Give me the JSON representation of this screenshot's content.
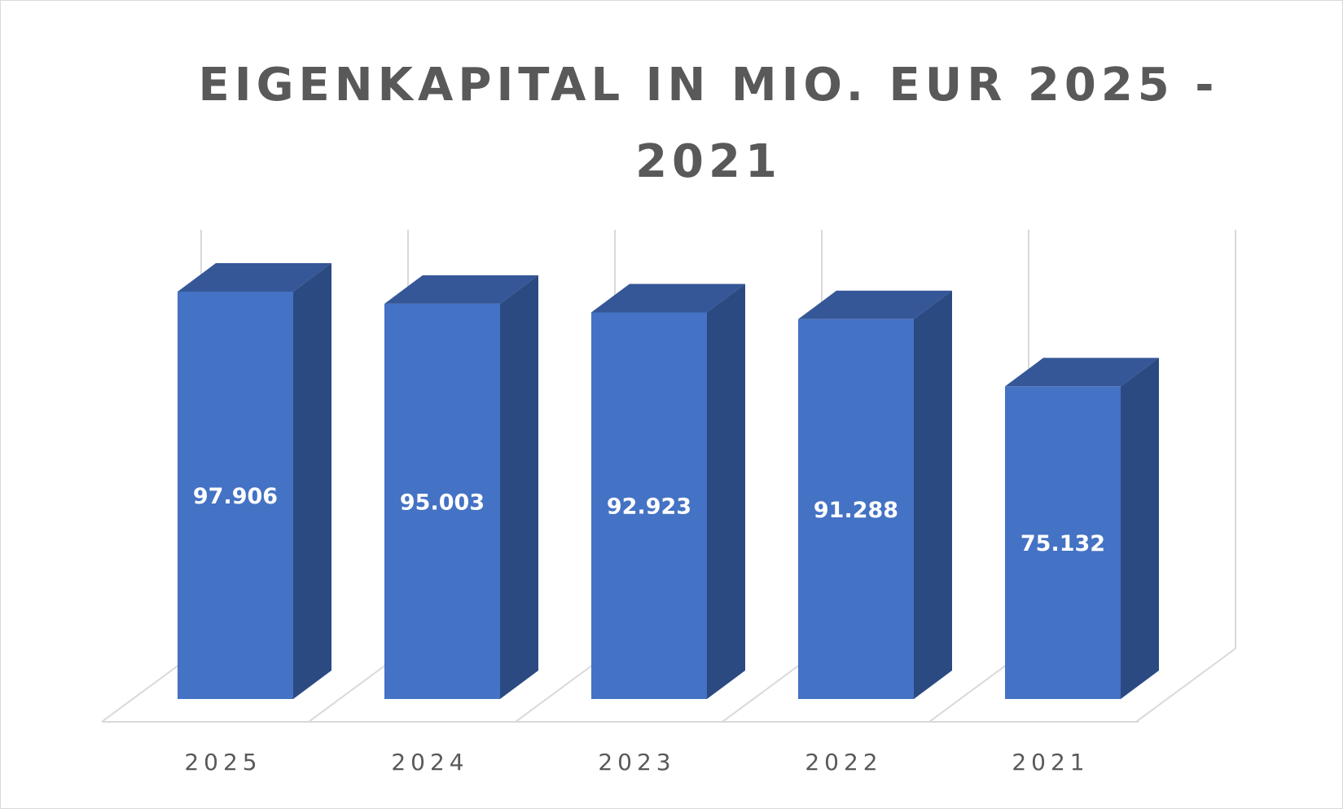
{
  "chart_data": {
    "type": "bar",
    "title": "EIGENKAPITAL IN MIO. EUR 2025 - 2021",
    "categories": [
      "2025",
      "2024",
      "2023",
      "2022",
      "2021"
    ],
    "values": [
      97906,
      95003,
      92923,
      91288,
      75132
    ],
    "data_labels": [
      "97.906",
      "95.003",
      "92.923",
      "91.288",
      "75.132"
    ],
    "ylim": [
      0,
      100000
    ],
    "grid": true,
    "legend": "none",
    "three_d": true,
    "colors": {
      "front": "#4472c4",
      "side": "#2b4a82",
      "top": "#355797",
      "grid": "#d9d9d9",
      "text": "#595959",
      "label": "#ffffff"
    }
  }
}
